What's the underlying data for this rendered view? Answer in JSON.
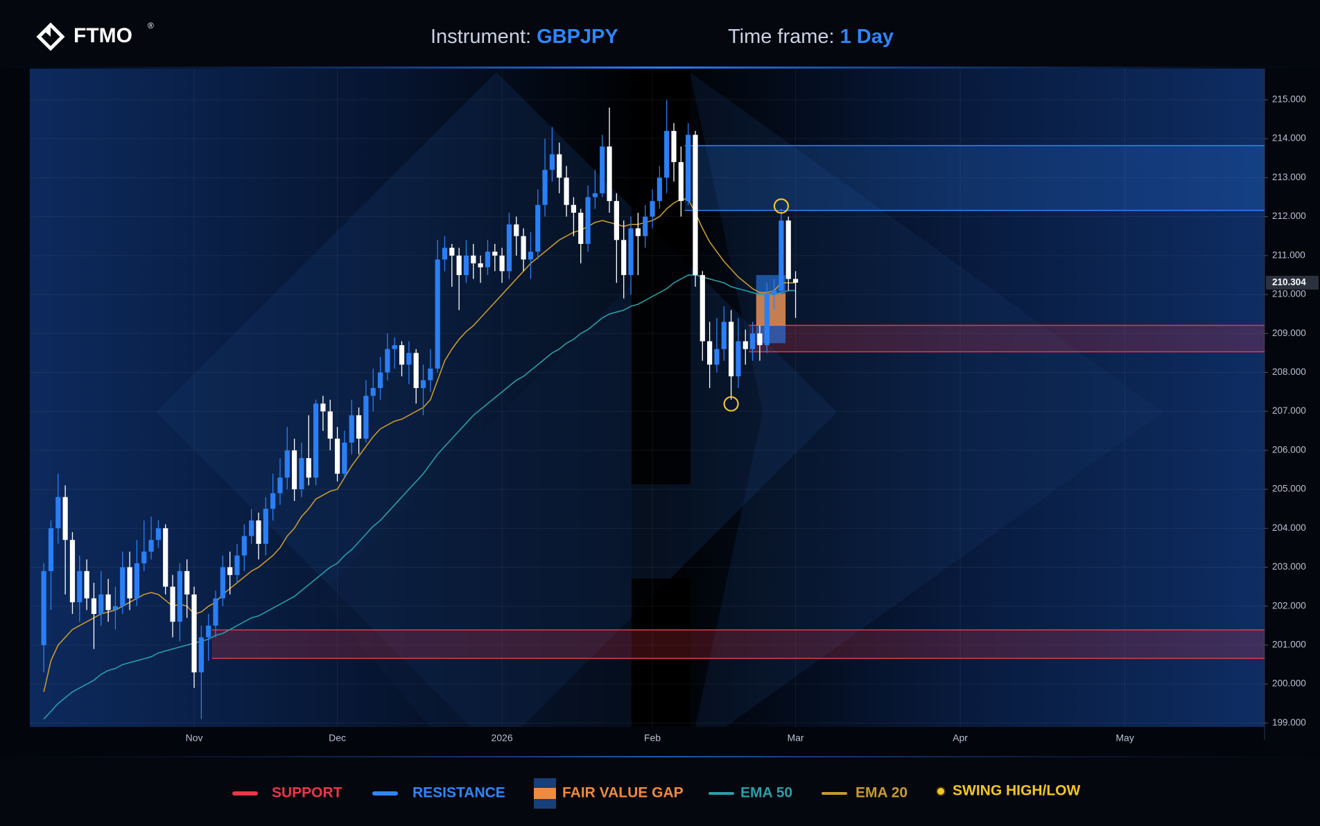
{
  "header": {
    "logo": "FTMO",
    "logo_mark": "®",
    "instrument_label": "Instrument:",
    "instrument": "GBPJPY",
    "timeframe_label": "Time frame:",
    "timeframe": "1 Day"
  },
  "chart_data": {
    "type": "candlestick",
    "categories": [
      null,
      null,
      null,
      null,
      null,
      null,
      null,
      null,
      null,
      null,
      null,
      null,
      null,
      null,
      null,
      null,
      null,
      null,
      null,
      null,
      null,
      "Nov",
      null,
      null,
      null,
      null,
      null,
      null,
      null,
      null,
      null,
      null,
      null,
      null,
      null,
      null,
      null,
      null,
      null,
      null,
      null,
      "Dec",
      null,
      null,
      null,
      null,
      null,
      null,
      null,
      null,
      null,
      null,
      null,
      null,
      null,
      null,
      null,
      null,
      null,
      null,
      null,
      null,
      null,
      null,
      "2026",
      null,
      null,
      null,
      null,
      null,
      null,
      null,
      null,
      null,
      null,
      null,
      null,
      null,
      null,
      null,
      null,
      null,
      null,
      null,
      null,
      "Feb",
      null,
      null,
      null,
      null,
      null,
      null,
      null,
      null,
      null,
      null,
      null,
      null,
      null,
      null,
      null,
      null,
      null,
      null,
      null,
      "Mar",
      null,
      null,
      null,
      null,
      null,
      null,
      null,
      null,
      null,
      null,
      null,
      null,
      null,
      null,
      null,
      null,
      null,
      null,
      null,
      null,
      null,
      null,
      "Apr",
      null,
      null,
      null,
      null,
      null,
      null,
      null,
      null,
      null,
      null,
      null,
      null,
      null,
      null,
      null,
      null,
      null,
      null,
      null,
      null,
      null,
      null,
      "May",
      null,
      null,
      null,
      null,
      null,
      null,
      null,
      null,
      null,
      null,
      null,
      null,
      null,
      null,
      null,
      null,
      null,
      null,
      null
    ],
    "open": [
      201.0,
      202.9,
      204.0,
      204.8,
      203.7,
      202.1,
      202.9,
      202.2,
      201.8,
      202.3,
      201.9,
      202.0,
      203.0,
      202.2,
      203.1,
      203.4,
      203.7,
      204.0,
      202.5,
      201.6,
      202.9,
      202.3,
      200.3,
      201.2,
      201.5,
      202.2,
      203.0,
      202.8,
      203.3,
      203.8,
      204.2,
      203.6,
      204.5,
      204.9,
      205.3,
      206.0,
      205.0,
      205.8,
      205.3,
      207.2,
      207.0,
      206.3,
      205.4,
      206.2,
      206.9,
      206.3,
      207.4,
      207.6,
      208.0,
      208.6,
      208.7,
      208.2,
      208.5,
      207.6,
      207.8,
      208.1,
      210.9,
      211.2,
      211.0,
      210.5,
      211.0,
      210.8,
      210.7,
      211.1,
      211.0,
      210.6,
      211.8,
      211.5,
      210.9,
      211.1,
      212.3,
      213.2,
      213.6,
      213.0,
      212.3,
      212.1,
      211.3,
      212.5,
      212.6,
      213.8,
      212.4,
      211.4,
      210.5,
      211.7,
      211.5,
      212.0,
      212.4,
      213.0,
      214.2,
      213.4,
      212.4,
      214.1,
      210.5,
      208.8,
      208.2,
      208.6,
      209.3,
      207.9,
      208.8,
      208.6,
      209.0,
      208.7,
      210.0,
      210.1,
      211.9,
      210.4,
      null,
      null,
      null,
      null,
      null,
      null,
      null,
      null,
      null,
      null,
      null,
      null,
      null,
      null,
      null,
      null,
      null,
      null,
      null,
      null,
      null,
      null,
      null,
      null,
      null,
      null,
      null,
      null,
      null,
      null,
      null,
      null,
      null,
      null,
      null,
      null,
      null,
      null,
      null,
      null,
      null,
      null,
      null,
      null,
      null,
      null,
      null,
      null,
      null,
      null,
      null,
      null,
      null,
      null,
      null,
      null,
      null,
      null,
      null,
      null,
      null,
      null,
      null,
      null,
      null
    ],
    "high": [
      203.1,
      204.2,
      205.4,
      205.1,
      203.9,
      203.3,
      203.2,
      202.6,
      202.9,
      202.7,
      202.5,
      203.4,
      203.4,
      203.7,
      204.2,
      204.3,
      204.2,
      204.1,
      202.8,
      203.1,
      203.2,
      202.5,
      201.5,
      201.8,
      202.4,
      203.3,
      203.4,
      203.6,
      204.1,
      204.5,
      204.4,
      204.8,
      205.4,
      205.8,
      206.6,
      206.3,
      206.2,
      206.9,
      207.3,
      207.4,
      207.3,
      206.6,
      206.5,
      207.3,
      207.1,
      207.8,
      208.1,
      208.4,
      209.0,
      208.9,
      208.8,
      208.8,
      208.6,
      208.2,
      208.6,
      211.4,
      211.5,
      211.3,
      211.2,
      211.4,
      211.3,
      211.0,
      211.4,
      211.3,
      211.2,
      212.1,
      212.0,
      211.7,
      211.6,
      212.7,
      214.0,
      214.3,
      213.9,
      213.3,
      212.5,
      212.2,
      212.8,
      213.2,
      214.1,
      214.8,
      212.6,
      211.9,
      212.0,
      212.1,
      212.3,
      212.7,
      213.3,
      215.0,
      214.4,
      213.8,
      214.4,
      214.2,
      210.6,
      209.3,
      209.4,
      209.7,
      209.6,
      209.4,
      209.1,
      209.3,
      209.2,
      210.3,
      210.4,
      212.2,
      212.0,
      210.6,
      null,
      null,
      null,
      null,
      null,
      null,
      null,
      null,
      null,
      null,
      null,
      null,
      null,
      null,
      null,
      null,
      null,
      null,
      null,
      null,
      null,
      null,
      null,
      null,
      null,
      null,
      null,
      null,
      null,
      null,
      null,
      null,
      null,
      null,
      null,
      null,
      null,
      null,
      null,
      null,
      null,
      null,
      null,
      null,
      null,
      null,
      null,
      null,
      null,
      null,
      null,
      null,
      null,
      null,
      null,
      null,
      null,
      null,
      null,
      null,
      null,
      null,
      null,
      null,
      null
    ],
    "low": [
      200.3,
      201.9,
      203.6,
      202.3,
      201.8,
      201.6,
      201.9,
      200.9,
      201.5,
      201.6,
      201.4,
      201.8,
      201.9,
      202.0,
      202.9,
      203.2,
      203.5,
      202.3,
      201.2,
      201.1,
      201.7,
      199.9,
      199.1,
      200.6,
      201.2,
      202.0,
      202.3,
      202.6,
      202.9,
      203.6,
      203.2,
      203.3,
      204.2,
      204.6,
      205.0,
      204.7,
      204.8,
      205.1,
      205.1,
      206.5,
      206.0,
      205.2,
      205.3,
      205.9,
      205.9,
      206.2,
      207.0,
      207.3,
      207.8,
      208.1,
      207.9,
      207.7,
      207.2,
      206.9,
      207.5,
      208.0,
      210.6,
      210.2,
      209.6,
      210.3,
      210.4,
      210.3,
      210.5,
      210.6,
      210.3,
      210.4,
      211.0,
      210.6,
      210.4,
      210.9,
      212.0,
      212.9,
      212.6,
      212.0,
      211.5,
      210.8,
      211.1,
      212.2,
      212.5,
      212.1,
      210.3,
      209.9,
      210.0,
      210.5,
      211.2,
      211.7,
      212.2,
      212.6,
      212.9,
      212.0,
      212.3,
      210.2,
      208.3,
      207.6,
      208.0,
      208.3,
      207.3,
      207.6,
      208.2,
      208.3,
      208.3,
      208.5,
      209.6,
      210.0,
      210.1,
      209.4,
      null,
      null,
      null,
      null,
      null,
      null,
      null,
      null,
      null,
      null,
      null,
      null,
      null,
      null,
      null,
      null,
      null,
      null,
      null,
      null,
      null,
      null,
      null,
      null,
      null,
      null,
      null,
      null,
      null,
      null,
      null,
      null,
      null,
      null,
      null,
      null,
      null,
      null,
      null,
      null,
      null,
      null,
      null,
      null,
      null,
      null,
      null,
      null,
      null,
      null,
      null,
      null,
      null,
      null,
      null,
      null,
      null,
      null,
      null,
      null,
      null,
      null,
      null,
      null,
      null
    ],
    "close": [
      202.9,
      204.0,
      204.8,
      203.7,
      202.1,
      202.9,
      202.2,
      201.8,
      202.3,
      201.9,
      202.0,
      203.0,
      202.2,
      203.1,
      203.4,
      203.7,
      204.0,
      202.5,
      201.6,
      202.9,
      202.3,
      200.3,
      201.2,
      201.5,
      202.2,
      203.0,
      202.8,
      203.3,
      203.8,
      204.2,
      203.6,
      204.5,
      204.9,
      205.3,
      206.0,
      205.0,
      205.8,
      205.3,
      207.2,
      207.0,
      206.3,
      205.4,
      206.2,
      206.9,
      206.3,
      207.4,
      207.6,
      208.0,
      208.6,
      208.7,
      208.2,
      208.5,
      207.6,
      207.8,
      208.1,
      210.9,
      211.2,
      211.0,
      210.5,
      211.0,
      210.8,
      210.7,
      211.1,
      211.0,
      210.6,
      211.8,
      211.5,
      210.9,
      211.1,
      212.3,
      213.2,
      213.6,
      213.0,
      212.3,
      212.1,
      211.3,
      212.5,
      212.6,
      213.8,
      212.4,
      211.4,
      210.5,
      211.7,
      211.5,
      212.0,
      212.4,
      213.0,
      214.2,
      213.4,
      212.4,
      214.1,
      210.5,
      208.8,
      208.2,
      208.6,
      209.3,
      207.9,
      208.8,
      208.6,
      209.0,
      208.7,
      210.0,
      210.1,
      211.9,
      210.4,
      210.304,
      null,
      null,
      null,
      null,
      null,
      null,
      null,
      null,
      null,
      null,
      null,
      null,
      null,
      null,
      null,
      null,
      null,
      null,
      null,
      null,
      null,
      null,
      null,
      null,
      null,
      null,
      null,
      null,
      null,
      null,
      null,
      null,
      null,
      null,
      null,
      null,
      null,
      null,
      null,
      null,
      null,
      null,
      null,
      null,
      null,
      null,
      null,
      null,
      null,
      null,
      null,
      null,
      null,
      null,
      null,
      null,
      null,
      null,
      null,
      null,
      null,
      null,
      null,
      null,
      null
    ],
    "up_color": "#2a7ff5",
    "down_color": "#ffffff",
    "series": [
      {
        "name": "EMA 50",
        "color": "#2a9fa8",
        "values": [
          199.1,
          199.3,
          199.5,
          199.65,
          199.8,
          199.9,
          200.0,
          200.1,
          200.25,
          200.35,
          200.4,
          200.5,
          200.55,
          200.6,
          200.65,
          200.7,
          200.8,
          200.85,
          200.9,
          200.95,
          201.0,
          201.05,
          201.1,
          201.15,
          201.25,
          201.3,
          201.4,
          201.5,
          201.6,
          201.7,
          201.75,
          201.85,
          201.95,
          202.05,
          202.15,
          202.25,
          202.4,
          202.55,
          202.7,
          202.85,
          203.0,
          203.1,
          203.3,
          203.45,
          203.65,
          203.85,
          204.05,
          204.2,
          204.4,
          204.6,
          204.8,
          205.0,
          205.2,
          205.4,
          205.65,
          205.9,
          206.1,
          206.3,
          206.5,
          206.7,
          206.9,
          207.05,
          207.2,
          207.35,
          207.5,
          207.65,
          207.8,
          207.9,
          208.05,
          208.2,
          208.35,
          208.5,
          208.6,
          208.75,
          208.85,
          209.0,
          209.1,
          209.25,
          209.4,
          209.5,
          209.55,
          209.6,
          209.7,
          209.75,
          209.85,
          209.95,
          210.05,
          210.15,
          210.3,
          210.4,
          210.5,
          210.5,
          210.45,
          210.4,
          210.35,
          210.3,
          210.2,
          210.15,
          210.1,
          210.05,
          210.0,
          210.0,
          210.0,
          210.05,
          210.1,
          210.1,
          null,
          null,
          null,
          null,
          null,
          null,
          null,
          null,
          null,
          null,
          null,
          null,
          null,
          null,
          null,
          null,
          null,
          null,
          null,
          null,
          null,
          null,
          null,
          null,
          null,
          null,
          null,
          null,
          null,
          null,
          null,
          null,
          null,
          null,
          null,
          null,
          null,
          null,
          null,
          null,
          null,
          null,
          null,
          null,
          null,
          null,
          null,
          null,
          null,
          null,
          null,
          null,
          null,
          null,
          null,
          null,
          null,
          null,
          null,
          null,
          null,
          null,
          null,
          null,
          null
        ]
      },
      {
        "name": "EMA 20",
        "color": "#c99a2e",
        "values": [
          199.8,
          200.6,
          201.0,
          201.2,
          201.4,
          201.5,
          201.6,
          201.7,
          201.8,
          201.85,
          201.9,
          202.0,
          202.1,
          202.2,
          202.3,
          202.35,
          202.3,
          202.15,
          202.0,
          202.05,
          202.0,
          201.8,
          201.85,
          202.0,
          202.1,
          202.3,
          202.45,
          202.6,
          202.75,
          202.9,
          203.0,
          203.15,
          203.3,
          203.5,
          203.8,
          204.0,
          204.3,
          204.5,
          204.75,
          204.85,
          204.95,
          205.0,
          205.3,
          205.6,
          205.85,
          206.1,
          206.35,
          206.55,
          206.65,
          206.75,
          206.8,
          206.9,
          207.0,
          207.1,
          207.3,
          207.8,
          208.3,
          208.6,
          208.85,
          209.05,
          209.2,
          209.4,
          209.6,
          209.8,
          210.0,
          210.2,
          210.4,
          210.6,
          210.8,
          210.95,
          211.1,
          211.25,
          211.4,
          211.5,
          211.6,
          211.65,
          211.75,
          211.85,
          211.9,
          211.85,
          211.8,
          211.75,
          211.8,
          211.8,
          211.85,
          211.9,
          212.0,
          212.2,
          212.35,
          212.45,
          212.45,
          212.1,
          211.7,
          211.35,
          211.1,
          210.85,
          210.65,
          210.45,
          210.3,
          210.15,
          210.05,
          210.05,
          210.1,
          210.3,
          210.3,
          210.3,
          null,
          null,
          null,
          null,
          null,
          null,
          null,
          null,
          null,
          null,
          null,
          null,
          null,
          null,
          null,
          null,
          null,
          null,
          null,
          null,
          null,
          null,
          null,
          null,
          null,
          null,
          null,
          null,
          null,
          null,
          null,
          null,
          null,
          null,
          null,
          null,
          null,
          null,
          null,
          null,
          null,
          null,
          null,
          null,
          null,
          null,
          null,
          null,
          null,
          null,
          null,
          null,
          null,
          null,
          null,
          null,
          null,
          null,
          null,
          null,
          null,
          null,
          null,
          null,
          null
        ]
      }
    ],
    "zones": [
      {
        "name": "SUPPORT",
        "color": "#e8364a",
        "ranges": [
          [
            200.66,
            201.39
          ],
          [
            208.53,
            209.21
          ]
        ]
      },
      {
        "name": "RESISTANCE",
        "color": "#2f86ff",
        "ranges": [
          [
            212.16,
            213.82
          ]
        ]
      },
      {
        "name": "FAIR VALUE GAP",
        "color": "#f08a3c",
        "ranges": [
          [
            209.2,
            210.03
          ]
        ],
        "frame": [
          208.75,
          210.5
        ]
      }
    ],
    "swing": {
      "name": "SWING HIGH/LOW",
      "color": "#f3c623"
    },
    "ylim": [
      198.9,
      215.8
    ],
    "yticks": [
      {
        "value": 199,
        "label": "199.000"
      },
      {
        "value": 200,
        "label": "200.000"
      },
      {
        "value": 201,
        "label": "201.000"
      },
      {
        "value": 202,
        "label": "202.000"
      },
      {
        "value": 203,
        "label": "203.000"
      },
      {
        "value": 204,
        "label": "204.000"
      },
      {
        "value": 205,
        "label": "205.000"
      },
      {
        "value": 206,
        "label": "206.000"
      },
      {
        "value": 207,
        "label": "207.000"
      },
      {
        "value": 208,
        "label": "208.000"
      },
      {
        "value": 209,
        "label": "209.000"
      },
      {
        "value": 210,
        "label": "210.000"
      },
      {
        "value": 211,
        "label": "211.000"
      },
      {
        "value": 212,
        "label": "212.000"
      },
      {
        "value": 213,
        "label": "213.000"
      },
      {
        "value": 214,
        "label": "214.000"
      },
      {
        "value": 215,
        "label": "215.000"
      }
    ],
    "grid": true
  }
}
